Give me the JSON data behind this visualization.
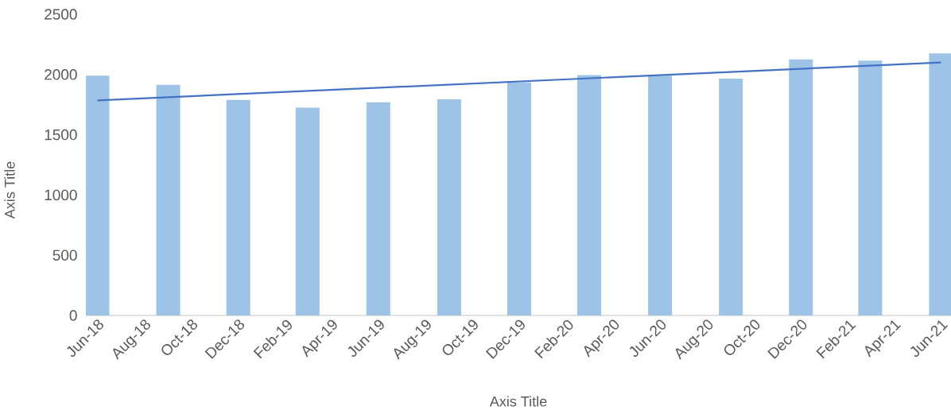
{
  "chart_data": {
    "type": "bar",
    "xlabel": "Axis Title",
    "ylabel": "Axis Title",
    "x": [
      "2018-06",
      "2018-09",
      "2018-12",
      "2019-03",
      "2019-06",
      "2019-09",
      "2019-12",
      "2020-03",
      "2020-06",
      "2020-09",
      "2020-12",
      "2021-03",
      "2021-06"
    ],
    "series": [
      {
        "color": "#9dc3e6",
        "values": [
          1990,
          1915,
          1790,
          1725,
          1770,
          1795,
          1935,
          1995,
          1990,
          1965,
          2125,
          2115,
          2175
        ]
      },
      {
        "type": "line",
        "color": "#4472c4",
        "x": [
          "2018-06",
          "2021-06"
        ],
        "values": [
          1785,
          2100
        ]
      }
    ],
    "xlim": [
      "2018-05-17",
      "2021-06-14"
    ],
    "ylim": [
      0,
      2500
    ],
    "yticks": [
      0,
      500,
      1000,
      1500,
      2000,
      2500
    ],
    "xticks": [
      {
        "value": "2018-06",
        "label": "Jun-18"
      },
      {
        "value": "2018-08",
        "label": "Aug-18"
      },
      {
        "value": "2018-10",
        "label": "Oct-18"
      },
      {
        "value": "2018-12",
        "label": "Dec-18"
      },
      {
        "value": "2019-02",
        "label": "Feb-19"
      },
      {
        "value": "2019-04",
        "label": "Apr-19"
      },
      {
        "value": "2019-06",
        "label": "Jun-19"
      },
      {
        "value": "2019-08",
        "label": "Aug-19"
      },
      {
        "value": "2019-10",
        "label": "Oct-19"
      },
      {
        "value": "2019-12",
        "label": "Dec-19"
      },
      {
        "value": "2020-02",
        "label": "Feb-20"
      },
      {
        "value": "2020-04",
        "label": "Apr-20"
      },
      {
        "value": "2020-06",
        "label": "Jun-20"
      },
      {
        "value": "2020-08",
        "label": "Aug-20"
      },
      {
        "value": "2020-10",
        "label": "Oct-20"
      },
      {
        "value": "2020-12",
        "label": "Dec-20"
      },
      {
        "value": "2021-02",
        "label": "Feb-21"
      },
      {
        "value": "2021-04",
        "label": "Apr-21"
      },
      {
        "value": "2021-06",
        "label": "Jun-21"
      }
    ],
    "grid": false
  }
}
